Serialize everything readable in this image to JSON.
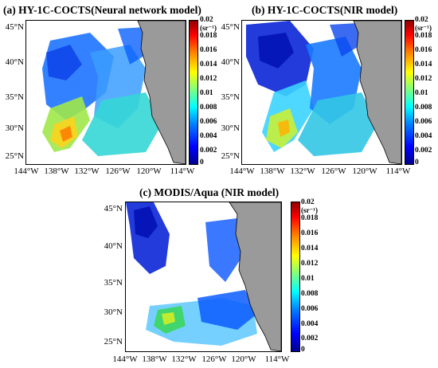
{
  "panels": [
    {
      "title": "(a) HY-1C-COCTS(Neural network model)"
    },
    {
      "title": "(b) HY-1C-COCTS(NIR model)"
    },
    {
      "title": "(c) MODIS/Aqua (NIR model)"
    }
  ],
  "axes": {
    "lat_ticks": [
      "45°N",
      "40°N",
      "35°N",
      "30°N",
      "25°N"
    ],
    "lon_ticks": [
      "144°W",
      "138°W",
      "132°W",
      "126°W",
      "120°W",
      "114°W"
    ]
  },
  "colorbar": {
    "max_label": "0.02",
    "unit": "(sr⁻¹)",
    "ticks": [
      "0.018",
      "0.016",
      "0.014",
      "0.012",
      "0.01",
      "0.008",
      "0.006",
      "0.004",
      "0.002",
      "0"
    ],
    "range": [
      0,
      0.02
    ],
    "colormap": "jet"
  },
  "colors": {
    "land": "#9a9a9a",
    "land_outline": "#000000"
  }
}
